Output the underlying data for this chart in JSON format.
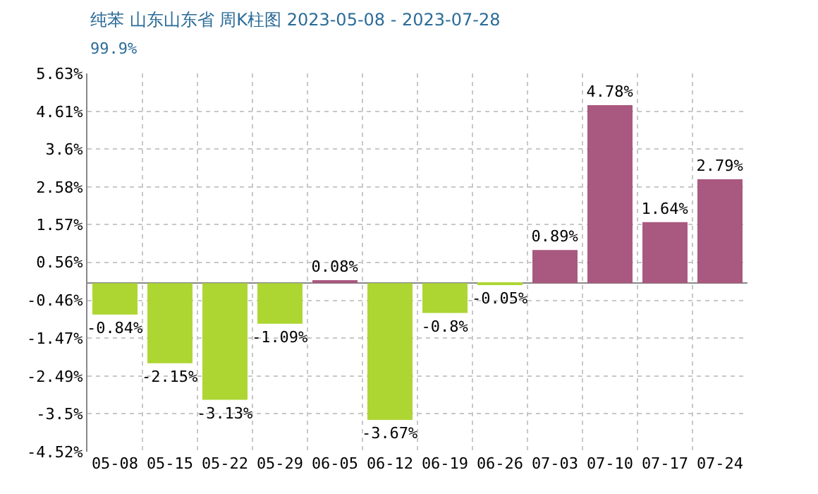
{
  "chart_data": {
    "type": "bar",
    "title": "纯苯 山东山东省 周K柱图 2023-05-08 - 2023-07-28",
    "subtitle": "99.9%",
    "categories": [
      "05-08",
      "05-15",
      "05-22",
      "05-29",
      "06-05",
      "06-12",
      "06-19",
      "06-26",
      "07-03",
      "07-10",
      "07-17",
      "07-24"
    ],
    "values": [
      -0.84,
      -2.15,
      -3.13,
      -1.09,
      0.08,
      -3.67,
      -0.8,
      -0.05,
      0.89,
      4.78,
      1.64,
      2.79
    ],
    "value_labels": [
      "-0.84%",
      "-2.15%",
      "-3.13%",
      "-1.09%",
      "0.08%",
      "-3.67%",
      "-0.8%",
      "-0.05%",
      "0.89%",
      "4.78%",
      "1.64%",
      "2.79%"
    ],
    "colors": [
      "#add633",
      "#add633",
      "#add633",
      "#add633",
      "#a95880",
      "#add633",
      "#add633",
      "#add633",
      "#a95880",
      "#a95880",
      "#a95880",
      "#a95880"
    ],
    "ylim": [
      -4.52,
      5.63
    ],
    "yticks": [
      {
        "value": 5.63,
        "label": "5.63%"
      },
      {
        "value": 4.61,
        "label": "4.61%"
      },
      {
        "value": 3.6,
        "label": "3.6%"
      },
      {
        "value": 2.58,
        "label": "2.58%"
      },
      {
        "value": 1.57,
        "label": "1.57%"
      },
      {
        "value": 0.56,
        "label": "0.56%"
      },
      {
        "value": -0.46,
        "label": "-0.46%"
      },
      {
        "value": -1.47,
        "label": "-1.47%"
      },
      {
        "value": -2.49,
        "label": "-2.49%"
      },
      {
        "value": -3.5,
        "label": "-3.5%"
      },
      {
        "value": -4.52,
        "label": "-4.52%"
      }
    ],
    "grid": true,
    "legend": false
  }
}
